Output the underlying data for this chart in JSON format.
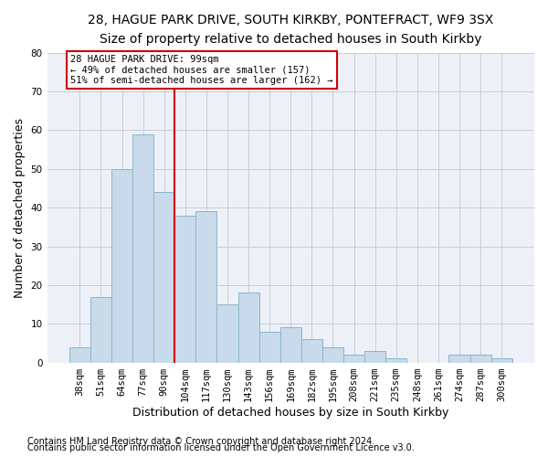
{
  "title_line1": "28, HAGUE PARK DRIVE, SOUTH KIRKBY, PONTEFRACT, WF9 3SX",
  "title_line2": "Size of property relative to detached houses in South Kirkby",
  "xlabel": "Distribution of detached houses by size in South Kirkby",
  "ylabel": "Number of detached properties",
  "categories": [
    "38sqm",
    "51sqm",
    "64sqm",
    "77sqm",
    "90sqm",
    "104sqm",
    "117sqm",
    "130sqm",
    "143sqm",
    "156sqm",
    "169sqm",
    "182sqm",
    "195sqm",
    "208sqm",
    "221sqm",
    "235sqm",
    "248sqm",
    "261sqm",
    "274sqm",
    "287sqm",
    "300sqm"
  ],
  "values": [
    4,
    17,
    50,
    59,
    44,
    38,
    39,
    15,
    18,
    8,
    9,
    6,
    4,
    2,
    3,
    1,
    0,
    0,
    2,
    2,
    1
  ],
  "bar_color": "#c9daea",
  "bar_edge_color": "#8ab4cc",
  "vline_color": "#cc0000",
  "vline_x": 4.5,
  "annotation_line1": "28 HAGUE PARK DRIVE: 99sqm",
  "annotation_line2": "← 49% of detached houses are smaller (157)",
  "annotation_line3": "51% of semi-detached houses are larger (162) →",
  "annotation_box_edgecolor": "#cc0000",
  "ylim": [
    0,
    80
  ],
  "yticks": [
    0,
    10,
    20,
    30,
    40,
    50,
    60,
    70,
    80
  ],
  "bg_color": "#edf1f7",
  "grid_color": "#c5cdd8",
  "title_fontsize": 10,
  "subtitle_fontsize": 9,
  "ylabel_fontsize": 9,
  "xlabel_fontsize": 9,
  "tick_fontsize": 7.5,
  "footnote_fontsize": 7,
  "footnote1": "Contains HM Land Registry data © Crown copyright and database right 2024.",
  "footnote2": "Contains public sector information licensed under the Open Government Licence v3.0."
}
